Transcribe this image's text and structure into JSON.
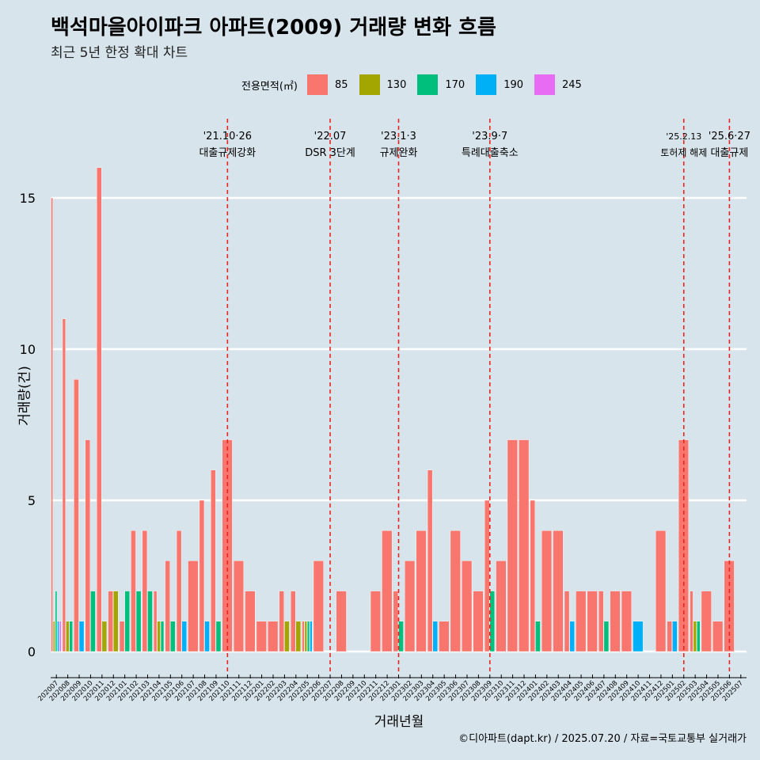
{
  "title": "백석마을아이파크 아파트(2009) 거래량 변화 흐름",
  "subtitle": "최근 5년 한정 확대 차트",
  "caption": "©디아파트(dapt.kr) / 2025.07.20 / 자료=국토교통부 실거래가",
  "chart_data": {
    "type": "bar",
    "xlabel": "거래년월",
    "ylabel": "거래량(건)",
    "ylim": [
      0,
      16.5
    ],
    "yticks": [
      0,
      5,
      10,
      15
    ],
    "legend": {
      "title": "전용면적(㎡)",
      "position": "top",
      "items": [
        {
          "name": "85",
          "color": "#f8766d"
        },
        {
          "name": "130",
          "color": "#a3a500"
        },
        {
          "name": "170",
          "color": "#00bf7d"
        },
        {
          "name": "190",
          "color": "#00b0f6"
        },
        {
          "name": "245",
          "color": "#e76bf3"
        }
      ]
    },
    "categories": [
      "202007",
      "202008",
      "202009",
      "202010",
      "202011",
      "202012",
      "202101",
      "202102",
      "202103",
      "202104",
      "202105",
      "202106",
      "202107",
      "202108",
      "202109",
      "202110",
      "202111",
      "202112",
      "202201",
      "202202",
      "202203",
      "202204",
      "202205",
      "202206",
      "202207",
      "202208",
      "202209",
      "202210",
      "202211",
      "202212",
      "202301",
      "202302",
      "202303",
      "202304",
      "202305",
      "202306",
      "202307",
      "202308",
      "202309",
      "202310",
      "202311",
      "202312",
      "202401",
      "202402",
      "202403",
      "202404",
      "202405",
      "202406",
      "202407",
      "202408",
      "202409",
      "202410",
      "202411",
      "202412",
      "202501",
      "202502",
      "202503",
      "202504",
      "202505",
      "202506",
      "202507"
    ],
    "series": [
      {
        "name": "85",
        "values": [
          15,
          11,
          9,
          7,
          16,
          2,
          1,
          4,
          4,
          2,
          3,
          4,
          3,
          5,
          6,
          7,
          3,
          2,
          1,
          1,
          2,
          2,
          1,
          3,
          0,
          2,
          0,
          0,
          2,
          4,
          2,
          3,
          4,
          6,
          1,
          4,
          3,
          2,
          5,
          3,
          7,
          7,
          5,
          4,
          4,
          2,
          2,
          2,
          2,
          2,
          2,
          0,
          0,
          4,
          1,
          7,
          2,
          2,
          1,
          3,
          0
        ]
      },
      {
        "name": "130",
        "values": [
          1,
          1,
          0,
          0,
          1,
          2,
          0,
          0,
          0,
          1,
          0,
          0,
          0,
          0,
          0,
          0,
          0,
          0,
          0,
          0,
          1,
          1,
          1,
          0,
          0,
          0,
          0,
          0,
          0,
          0,
          0,
          0,
          0,
          0,
          0,
          0,
          0,
          0,
          0,
          0,
          0,
          0,
          0,
          0,
          0,
          0,
          0,
          0,
          0,
          0,
          0,
          0,
          0,
          0,
          0,
          0,
          1,
          0,
          0,
          0,
          0
        ]
      },
      {
        "name": "170",
        "values": [
          2,
          1,
          0,
          2,
          0,
          0,
          2,
          2,
          2,
          1,
          1,
          0,
          0,
          0,
          1,
          0,
          0,
          0,
          0,
          0,
          0,
          0,
          1,
          0,
          0,
          0,
          0,
          0,
          0,
          0,
          1,
          0,
          0,
          0,
          0,
          0,
          0,
          0,
          2,
          0,
          0,
          0,
          1,
          0,
          0,
          0,
          0,
          0,
          1,
          0,
          0,
          0,
          0,
          0,
          0,
          0,
          1,
          0,
          0,
          0,
          0
        ]
      },
      {
        "name": "190",
        "values": [
          1,
          0,
          1,
          0,
          0,
          0,
          0,
          0,
          0,
          0,
          0,
          1,
          0,
          1,
          0,
          0,
          0,
          0,
          0,
          0,
          0,
          0,
          1,
          0,
          0,
          0,
          0,
          0,
          0,
          0,
          0,
          0,
          0,
          1,
          0,
          0,
          0,
          0,
          0,
          0,
          0,
          0,
          0,
          0,
          0,
          1,
          0,
          0,
          0,
          0,
          0,
          1,
          0,
          0,
          1,
          0,
          0,
          0,
          0,
          0,
          0
        ]
      },
      {
        "name": "245",
        "values": [
          1,
          0,
          0,
          0,
          0,
          0,
          0,
          0,
          0,
          0,
          0,
          0,
          0,
          0,
          0,
          0,
          0,
          0,
          0,
          0,
          0,
          0,
          0,
          0,
          0,
          0,
          0,
          0,
          0,
          0,
          0,
          0,
          0,
          0,
          0,
          0,
          0,
          0,
          0,
          0,
          0,
          0,
          0,
          0,
          0,
          0,
          0,
          0,
          0,
          0,
          0,
          0,
          0,
          0,
          0,
          0,
          0,
          0,
          0,
          0,
          0
        ]
      }
    ],
    "annotations": [
      {
        "x": "202110",
        "date": "'21.10·26",
        "text": "대출규제강화"
      },
      {
        "x": "202207",
        "date": "'22.07",
        "text": "DSR 3단계"
      },
      {
        "x": "202301",
        "date": "'23.1·3",
        "text": "규제완화"
      },
      {
        "x": "202309",
        "date": "'23.9·7",
        "text": "특례대출축소"
      },
      {
        "x": "202502",
        "date": "'25.2.13",
        "text": "토허제 해제"
      },
      {
        "x": "202506",
        "date": "'25.6·27",
        "text": "대출규제"
      }
    ]
  }
}
